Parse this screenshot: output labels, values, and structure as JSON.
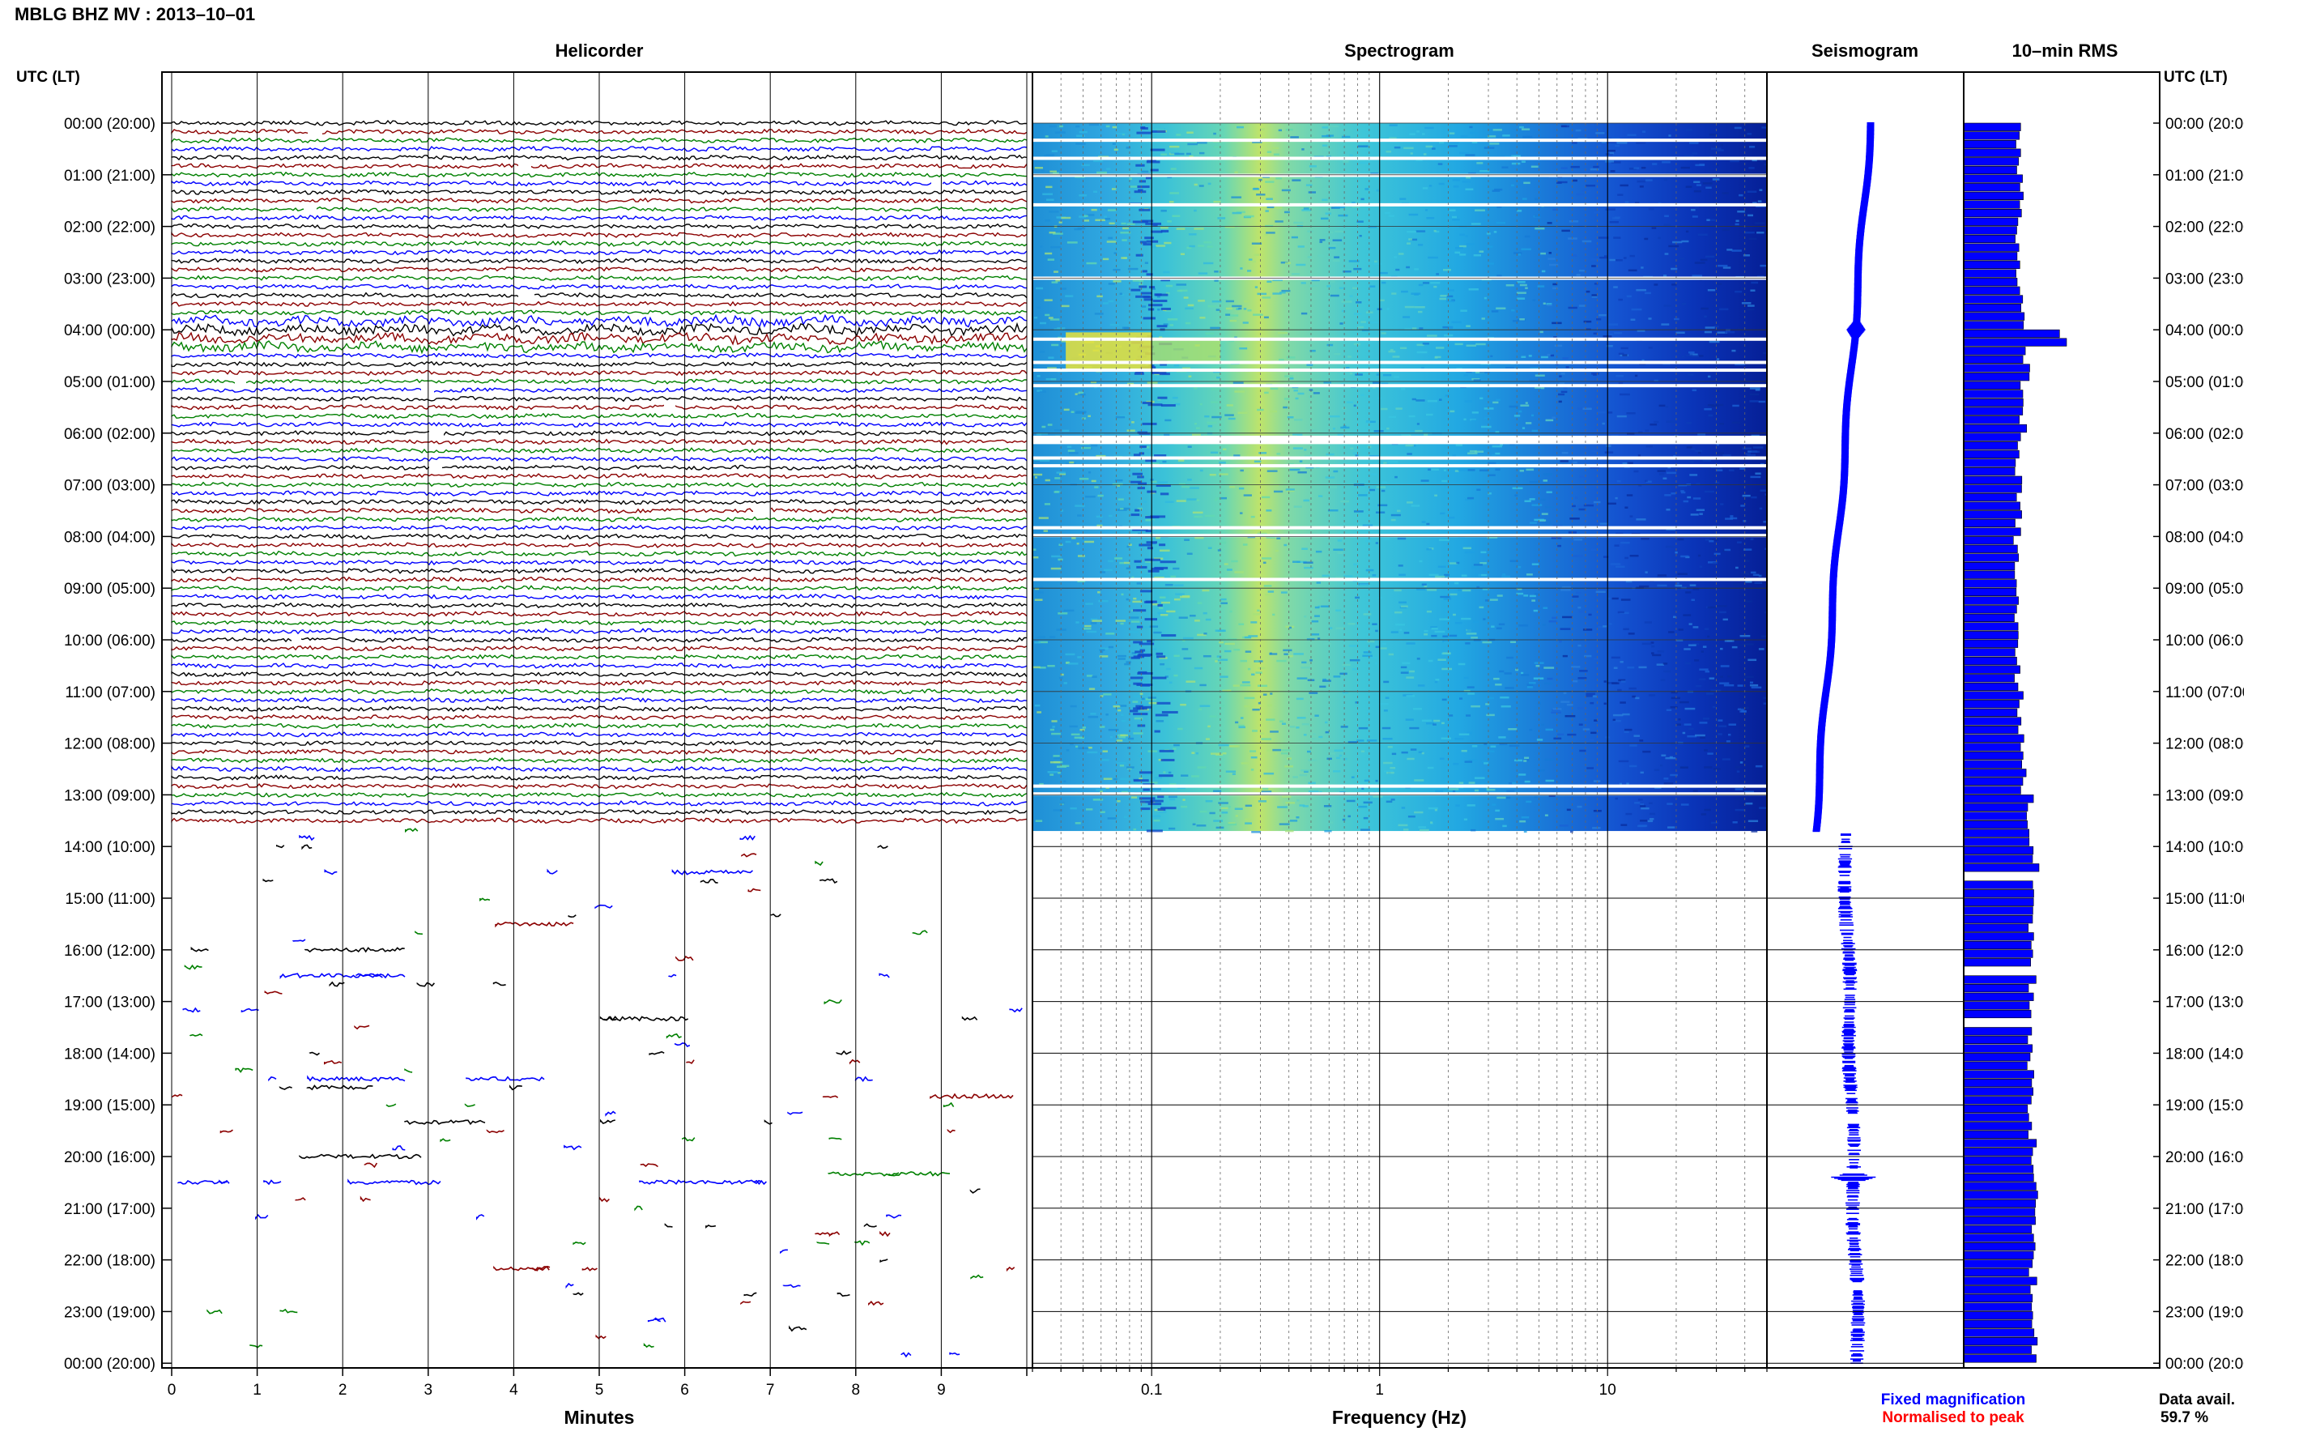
{
  "header": {
    "station_title": "MBLG BHZ MV : 2013–10–01"
  },
  "panels": {
    "helicorder_title": "Helicorder",
    "spectrogram_title": "Spectrogram",
    "seismogram_title": "Seismogram",
    "rms_title": "10–min RMS",
    "time_axis_label_left": "UTC (LT)",
    "time_axis_label_right": "UTC (LT)",
    "xlabel_minutes": "Minutes",
    "xlabel_frequency": "Frequency (Hz)"
  },
  "legend": {
    "fixed_magnification": "Fixed magnification",
    "fixed_magnification_color": "#0000ff",
    "normalised_to_peak": "Normalised to peak",
    "normalised_to_peak_color": "#ff0000"
  },
  "footer": {
    "data_avail_label": "Data avail.",
    "data_avail_value": "59.7 %"
  },
  "colors": {
    "trace_cycle": [
      "#000000",
      "#8b0000",
      "#008000",
      "#0000ff"
    ],
    "rms_fill": "#0000ff",
    "seismogram": "#0000ff"
  },
  "chart_data": {
    "type": "helicorder",
    "time_ticks": [
      "00:00 (20:00)",
      "01:00 (21:00)",
      "02:00 (22:00)",
      "03:00 (23:00)",
      "04:00 (00:00)",
      "05:00 (01:00)",
      "06:00 (02:00)",
      "07:00 (03:00)",
      "08:00 (04:00)",
      "09:00 (05:00)",
      "10:00 (06:00)",
      "11:00 (07:00)",
      "12:00 (08:00)",
      "13:00 (09:00)",
      "14:00 (10:00)",
      "15:00 (11:00)",
      "16:00 (12:00)",
      "17:00 (13:00)",
      "18:00 (14:00)",
      "19:00 (15:00)",
      "20:00 (16:00)",
      "21:00 (17:00)",
      "22:00 (18:00)",
      "23:00 (19:00)",
      "00:00 (20:00)"
    ],
    "minutes_ticks": [
      "0",
      "1",
      "2",
      "3",
      "4",
      "5",
      "6",
      "7",
      "8",
      "9"
    ],
    "minutes_range": [
      0,
      10
    ],
    "frequency_ticks": [
      "0.1",
      "1",
      "10"
    ],
    "frequency_range_hz": [
      0.03,
      50
    ],
    "frequency_scale": "log",
    "continuous_data_until_hours": 13.7,
    "data_available_percent": 59.7,
    "rms_hourly_relative": [
      0.48,
      0.5,
      0.48,
      0.5,
      0.55,
      0.52,
      0.48,
      0.48,
      0.46,
      0.46,
      0.47,
      0.5,
      0.53,
      0.58,
      0.62,
      0.6,
      0.6,
      0.6,
      0.58,
      0.6,
      0.62,
      0.6,
      0.61,
      0.62
    ],
    "rms_peak_hours": 4.1,
    "rms_gaps_hours": [
      [
        14.5,
        14.6
      ],
      [
        16.3,
        16.4
      ],
      [
        17.3,
        17.4
      ]
    ],
    "seismogram_event_hours": [
      4.0,
      20.4
    ]
  }
}
